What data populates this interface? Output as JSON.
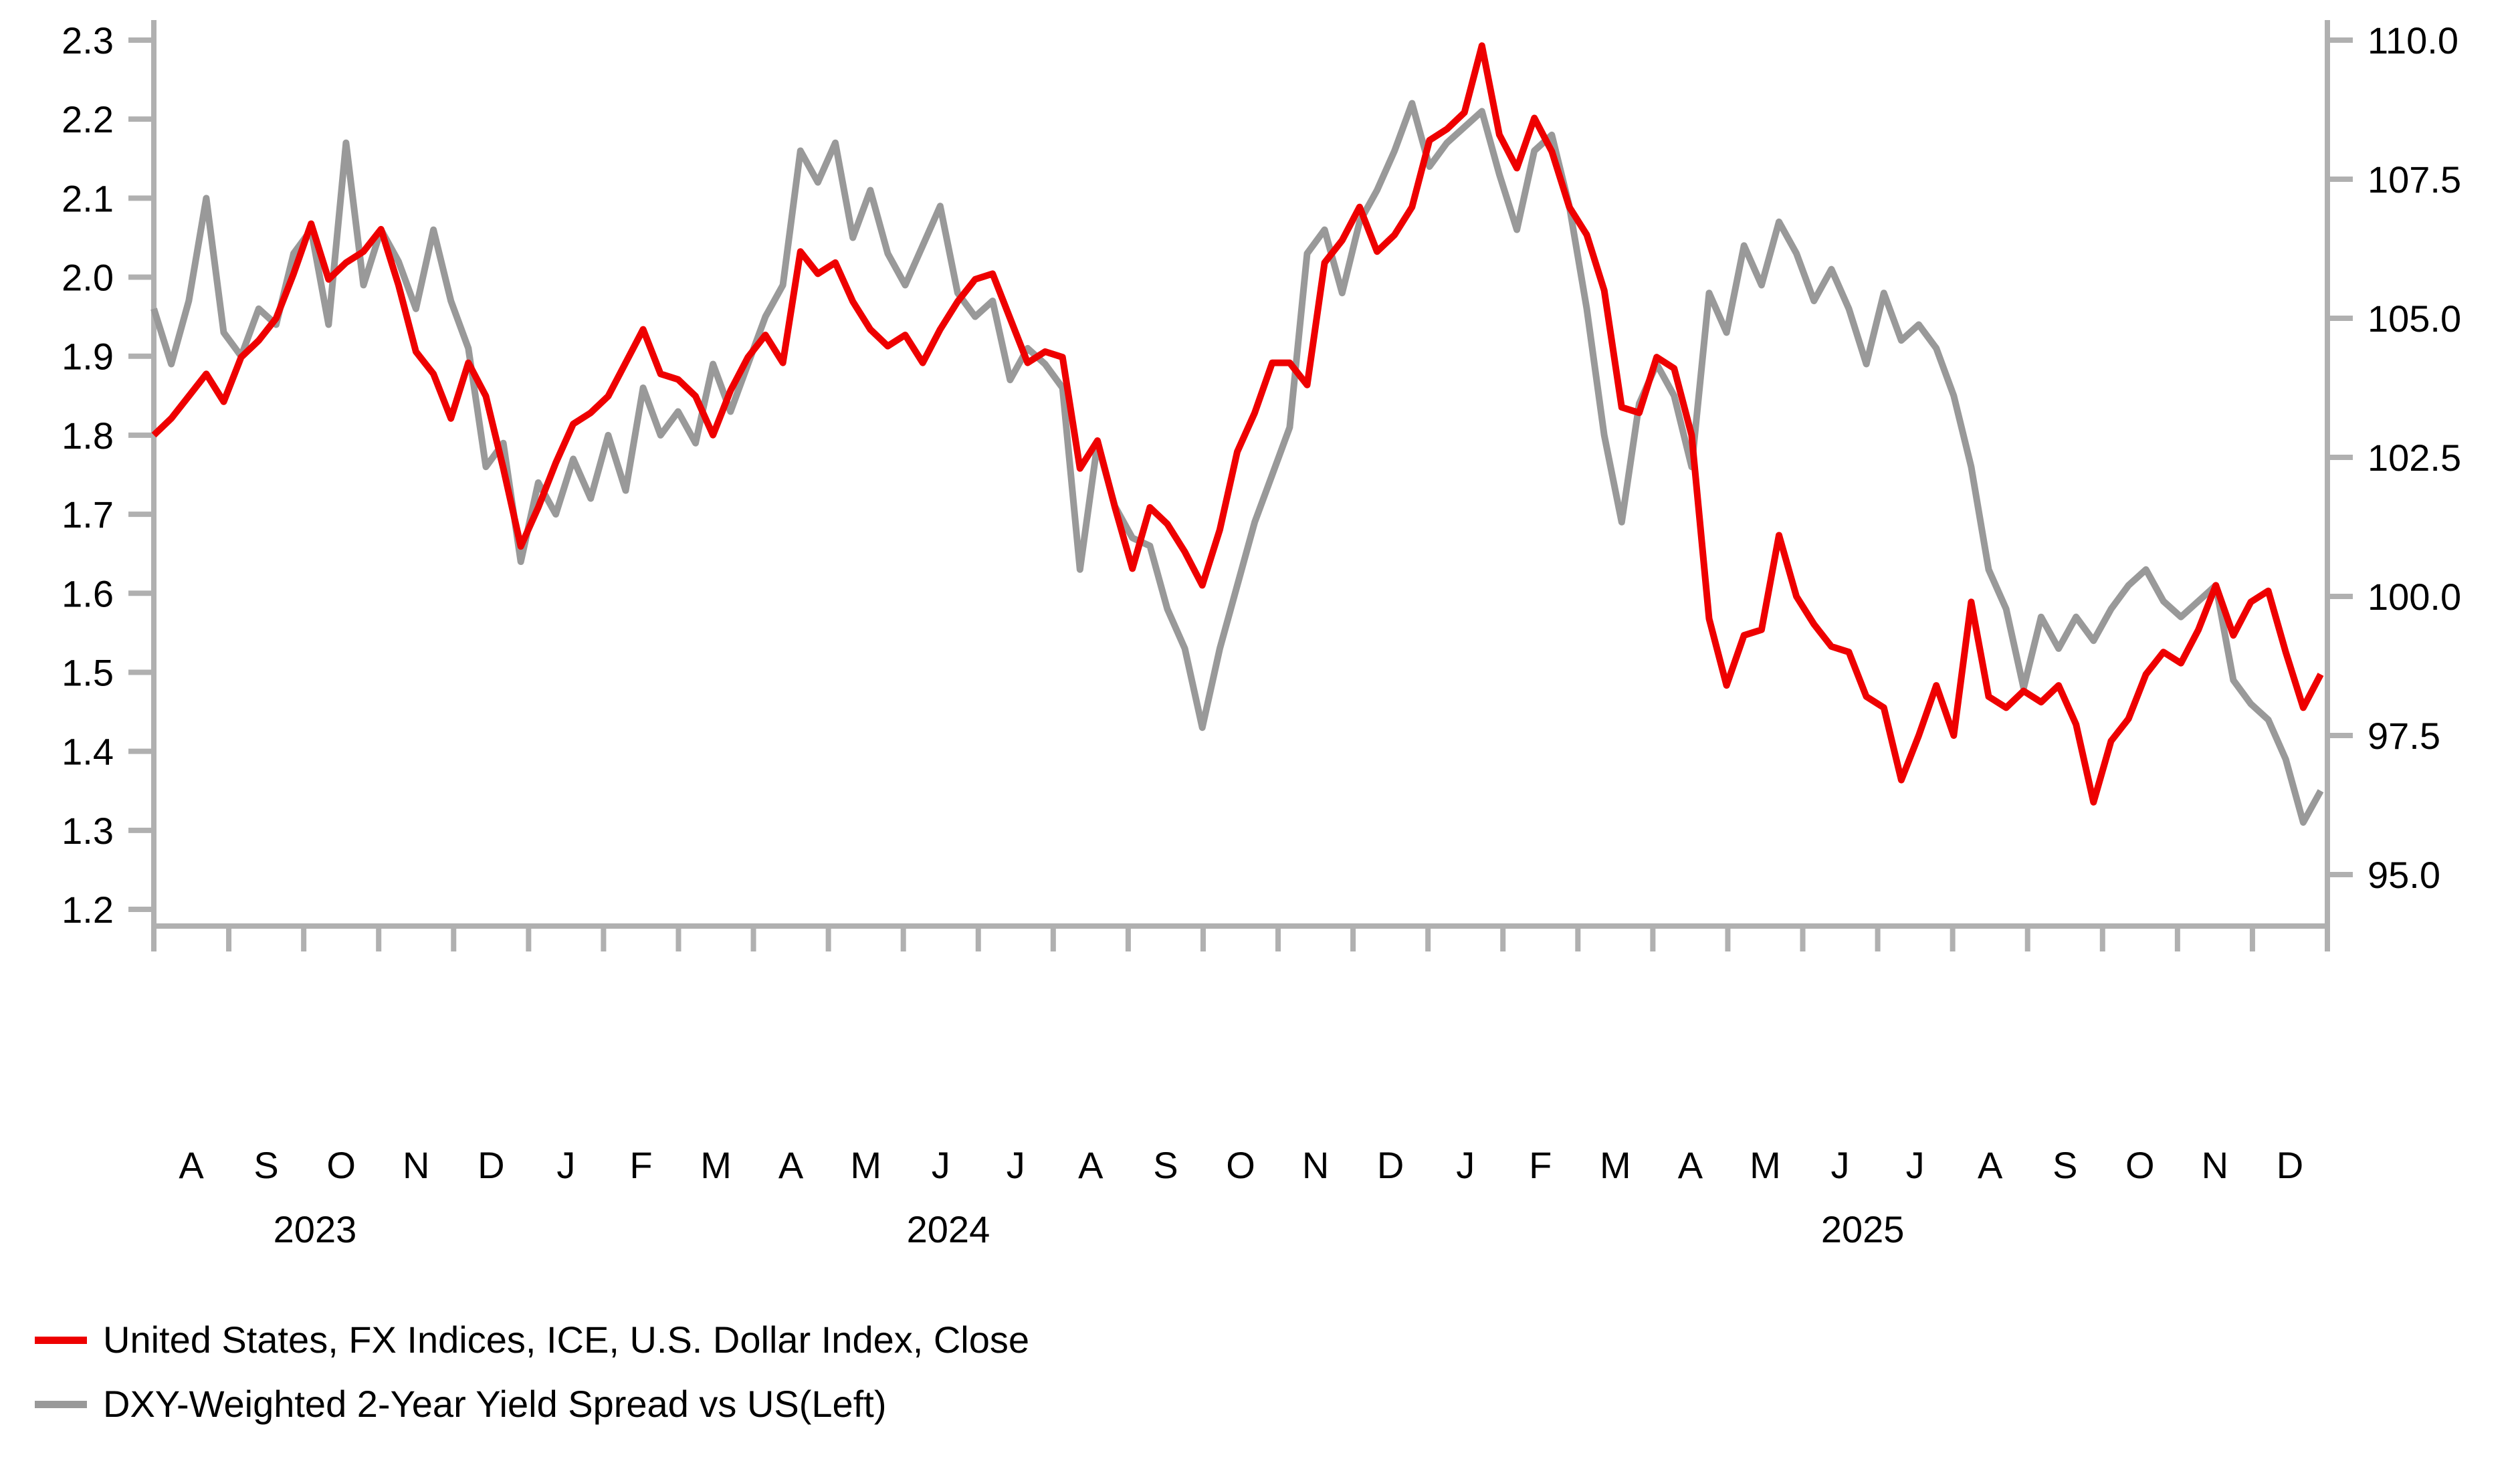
{
  "chart_data": {
    "type": "line",
    "title": "",
    "grid": false,
    "legend_position": "bottom-left",
    "background_color": "#ffffff",
    "axis_color": "#b0b0b0",
    "text_color": "#000000",
    "x_axis": {
      "start_date": "2023-08-01",
      "step_days": 7,
      "month_labels": [
        "A",
        "S",
        "O",
        "N",
        "D",
        "J",
        "F",
        "M",
        "A",
        "M",
        "J",
        "J",
        "A",
        "S",
        "O",
        "N",
        "D",
        "J",
        "F",
        "M",
        "A",
        "M",
        "J",
        "J",
        "A",
        "S",
        "O",
        "N",
        "D"
      ],
      "year_labels": [
        {
          "label": "2023",
          "month_index": 2.15
        },
        {
          "label": "2024",
          "month_index": 10.6
        },
        {
          "label": "2025",
          "month_index": 22.8
        }
      ]
    },
    "left_axis": {
      "ticks": [
        2.3,
        2.2,
        2.1,
        2.0,
        1.9,
        1.8,
        1.7,
        1.6,
        1.5,
        1.4,
        1.3,
        1.2
      ],
      "range": [
        1.2,
        2.3
      ],
      "tick_format_decimals": 1,
      "used_by": "DXY-Weighted 2-Year Yield Spread vs US(Left)"
    },
    "right_axis": {
      "ticks": [
        110.0,
        107.5,
        105.0,
        102.5,
        100.0,
        97.5,
        95.0
      ],
      "range": [
        95.0,
        110.0
      ],
      "tick_format_decimals": 1,
      "used_by": "United States, FX Indices, ICE, U.S. Dollar Index, Close"
    },
    "series": [
      {
        "name": "United States, FX Indices, ICE, U.S. Dollar Index, Close",
        "axis": "right",
        "color": "#ee0000",
        "line_width": 10,
        "values": [
          102.9,
          103.2,
          103.6,
          104.0,
          103.5,
          104.3,
          104.6,
          105.0,
          105.8,
          106.7,
          105.7,
          106.0,
          106.2,
          106.6,
          105.6,
          104.4,
          104.0,
          103.2,
          104.2,
          103.6,
          102.3,
          100.9,
          101.6,
          102.4,
          103.1,
          103.3,
          103.6,
          104.2,
          104.8,
          104.0,
          103.9,
          103.6,
          102.9,
          103.7,
          104.3,
          104.7,
          104.2,
          106.2,
          105.8,
          106.0,
          105.3,
          104.8,
          104.5,
          104.7,
          104.2,
          104.8,
          105.3,
          105.7,
          105.8,
          105.0,
          104.2,
          104.4,
          104.3,
          102.3,
          102.8,
          101.6,
          100.5,
          101.6,
          101.3,
          100.8,
          100.2,
          101.2,
          102.6,
          103.3,
          104.2,
          104.2,
          103.8,
          106.0,
          106.4,
          107.0,
          106.2,
          106.5,
          107.0,
          108.2,
          108.4,
          108.7,
          109.9,
          108.3,
          107.7,
          108.6,
          108.0,
          107.0,
          106.5,
          105.5,
          103.4,
          103.3,
          104.3,
          104.1,
          102.9,
          99.6,
          98.4,
          99.3,
          99.4,
          101.1,
          100.0,
          99.5,
          99.1,
          99.0,
          98.2,
          98.0,
          96.7,
          97.5,
          98.4,
          97.5,
          99.9,
          98.2,
          98.0,
          98.3,
          98.1,
          98.4,
          97.7,
          96.3,
          97.4,
          97.8,
          98.6,
          99.0,
          98.8,
          99.4,
          100.2,
          99.3,
          99.9,
          100.1,
          99.0,
          98.0,
          98.6
        ]
      },
      {
        "name": "DXY-Weighted 2-Year Yield Spread vs US(Left)",
        "axis": "left",
        "color": "#999999",
        "line_width": 10,
        "values": [
          1.96,
          1.89,
          1.97,
          2.1,
          1.93,
          1.9,
          1.96,
          1.94,
          2.03,
          2.06,
          1.94,
          2.17,
          1.99,
          2.06,
          2.02,
          1.96,
          2.06,
          1.97,
          1.91,
          1.76,
          1.79,
          1.64,
          1.74,
          1.7,
          1.77,
          1.72,
          1.8,
          1.73,
          1.86,
          1.8,
          1.83,
          1.79,
          1.89,
          1.83,
          1.89,
          1.95,
          1.99,
          2.16,
          2.12,
          2.17,
          2.05,
          2.11,
          2.03,
          1.99,
          2.04,
          2.09,
          1.98,
          1.95,
          1.97,
          1.87,
          1.91,
          1.89,
          1.86,
          1.63,
          1.79,
          1.71,
          1.67,
          1.66,
          1.58,
          1.53,
          1.43,
          1.53,
          1.61,
          1.69,
          1.75,
          1.81,
          2.03,
          2.06,
          1.98,
          2.07,
          2.11,
          2.16,
          2.22,
          2.14,
          2.17,
          2.19,
          2.21,
          2.13,
          2.06,
          2.16,
          2.18,
          2.09,
          1.96,
          1.8,
          1.69,
          1.84,
          1.89,
          1.85,
          1.76,
          1.98,
          1.93,
          2.04,
          1.99,
          2.07,
          2.03,
          1.97,
          2.01,
          1.96,
          1.89,
          1.98,
          1.92,
          1.94,
          1.91,
          1.85,
          1.76,
          1.63,
          1.58,
          1.48,
          1.57,
          1.53,
          1.57,
          1.54,
          1.58,
          1.61,
          1.63,
          1.59,
          1.57,
          1.59,
          1.61,
          1.49,
          1.46,
          1.44,
          1.39,
          1.31,
          1.35
        ]
      }
    ]
  },
  "legend": {
    "items": [
      {
        "label": "United States, FX Indices, ICE, U.S. Dollar Index, Close",
        "color": "#ee0000"
      },
      {
        "label": "DXY-Weighted 2-Year Yield Spread vs US(Left)",
        "color": "#999999"
      }
    ]
  }
}
